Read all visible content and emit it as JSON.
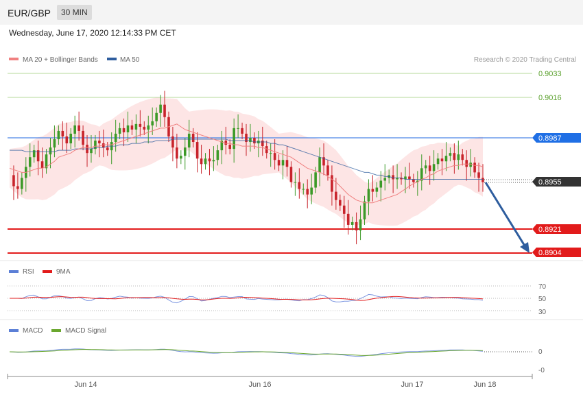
{
  "header": {
    "symbol": "EUR/GBP",
    "timeframe": "30 MIN",
    "datetime": "Wednesday, June 17, 2020 12:14:33 PM CET"
  },
  "legend": {
    "ma20": "MA 20 + Bollinger Bands",
    "ma50": "MA 50",
    "credit": "Research © 2020 Trading Central"
  },
  "levels": [
    {
      "value": "0.9033",
      "kind": "target-green"
    },
    {
      "value": "0.9016",
      "kind": "target-green"
    },
    {
      "value": "0.8987",
      "kind": "pivot-blue"
    },
    {
      "value": "0.8955",
      "kind": "last-price"
    },
    {
      "value": "0.8921",
      "kind": "support-red"
    },
    {
      "value": "0.8904",
      "kind": "support-red"
    }
  ],
  "rsi": {
    "label": "RSI",
    "ma_label": "9MA",
    "ticks": [
      "70",
      "50",
      "30"
    ]
  },
  "macd": {
    "label": "MACD",
    "signal_label": "MACD Signal",
    "ticks": [
      "0",
      "-0"
    ]
  },
  "xaxis": {
    "labels": [
      "Jun 14",
      "Jun 16",
      "Jun 17",
      "Jun 18"
    ]
  },
  "colors": {
    "ma20": "#f08080",
    "ma50": "#2e5d9e",
    "green": "#7cbf4a",
    "blue": "#4d88e8",
    "red": "#e21b1b",
    "bull": "#3c9a28",
    "bear": "#c8232b",
    "rsi": "#5b7fd6",
    "macd": "#5b7fd6",
    "signal": "#6aa72e"
  },
  "chart_data": {
    "type": "candlestick",
    "price_axis": {
      "ylim": [
        0.8895,
        0.904
      ]
    },
    "closes": [
      0.896,
      0.8952,
      0.895,
      0.8958,
      0.8966,
      0.8973,
      0.8978,
      0.897,
      0.8965,
      0.8975,
      0.898,
      0.8986,
      0.8992,
      0.8988,
      0.8983,
      0.899,
      0.8996,
      0.8992,
      0.8982,
      0.8976,
      0.8979,
      0.8985,
      0.8983,
      0.898,
      0.8978,
      0.8984,
      0.899,
      0.8994,
      0.8991,
      0.8996,
      0.8993,
      0.8997,
      0.8995,
      0.8993,
      0.8996,
      0.8999,
      0.9005,
      0.9011,
      0.9002,
      0.8988,
      0.898,
      0.8972,
      0.8974,
      0.898,
      0.899,
      0.8984,
      0.8972,
      0.8968,
      0.8972,
      0.897,
      0.8971,
      0.8978,
      0.8985,
      0.8982,
      0.8979,
      0.8994,
      0.8994,
      0.899,
      0.8984,
      0.8987,
      0.8983,
      0.8985,
      0.8981,
      0.8976,
      0.8976,
      0.8971,
      0.8967,
      0.8971,
      0.8966,
      0.8955,
      0.8955,
      0.895,
      0.895,
      0.8946,
      0.8951,
      0.8962,
      0.8973,
      0.8967,
      0.896,
      0.8948,
      0.8942,
      0.8938,
      0.8932,
      0.8924,
      0.8926,
      0.892,
      0.8928,
      0.8941,
      0.895,
      0.8948,
      0.8951,
      0.8956,
      0.8958,
      0.896,
      0.8957,
      0.8958,
      0.8957,
      0.8959,
      0.8957,
      0.8955,
      0.8956,
      0.8965,
      0.8967,
      0.8963,
      0.8968,
      0.8972,
      0.897,
      0.8974,
      0.8976,
      0.8971,
      0.8975,
      0.8971,
      0.8966,
      0.8969,
      0.8962,
      0.8958,
      0.8955
    ],
    "ma20": [
      0.8965,
      0.8964,
      0.8963,
      0.8962,
      0.8962,
      0.8963,
      0.8964,
      0.8965,
      0.8965,
      0.8966,
      0.8968,
      0.897,
      0.8973,
      0.8974,
      0.8975,
      0.8976,
      0.8978,
      0.8979,
      0.898,
      0.898,
      0.898,
      0.8981,
      0.8981,
      0.8982,
      0.8982,
      0.8982,
      0.8983,
      0.8984,
      0.8985,
      0.8986,
      0.8987,
      0.8988,
      0.8989,
      0.899,
      0.8991,
      0.8992,
      0.8993,
      0.8994,
      0.8994,
      0.8995,
      0.8996,
      0.8997,
      0.8995,
      0.8993,
      0.8992,
      0.8991,
      0.899,
      0.8989,
      0.8988,
      0.8987,
      0.8986,
      0.8985,
      0.8984,
      0.8983,
      0.8983,
      0.8982,
      0.8982,
      0.8981,
      0.8981,
      0.8981,
      0.8981,
      0.898,
      0.898,
      0.8979,
      0.8978,
      0.8977,
      0.8976,
      0.8975,
      0.8974,
      0.8973,
      0.8971,
      0.8969,
      0.8967,
      0.8965,
      0.8964,
      0.8963,
      0.8962,
      0.8961,
      0.8959,
      0.8957,
      0.8955,
      0.8952,
      0.8949,
      0.8946,
      0.8944,
      0.8942,
      0.8941,
      0.894,
      0.894,
      0.894,
      0.8941,
      0.8942,
      0.8943,
      0.8944,
      0.8945,
      0.8946,
      0.8948,
      0.895,
      0.8952,
      0.8954,
      0.8955,
      0.8957,
      0.8958,
      0.896,
      0.8961,
      0.8963,
      0.8964,
      0.8965,
      0.8966,
      0.8967,
      0.8967,
      0.8968,
      0.8968,
      0.8968,
      0.8967,
      0.8967,
      0.8966
    ],
    "ma50": [
      0.8978,
      0.8978,
      0.8978,
      0.8978,
      0.8977,
      0.8977,
      0.8977,
      0.8977,
      0.8977,
      0.8977,
      0.8977,
      0.8977,
      0.8978,
      0.8978,
      0.8978,
      0.8978,
      0.8979,
      0.8979,
      0.8979,
      0.8979,
      0.8979,
      0.898,
      0.898,
      0.898,
      0.8981,
      0.8981,
      0.8981,
      0.8982,
      0.8982,
      0.8982,
      0.8983,
      0.8983,
      0.8983,
      0.8984,
      0.8984,
      0.8984,
      0.8985,
      0.8985,
      0.8985,
      0.8985,
      0.8986,
      0.8986,
      0.8986,
      0.8986,
      0.8986,
      0.8986,
      0.8986,
      0.8986,
      0.8986,
      0.8986,
      0.8986,
      0.8986,
      0.8986,
      0.8986,
      0.8985,
      0.8985,
      0.8985,
      0.8985,
      0.8985,
      0.8985,
      0.8984,
      0.8984,
      0.8984,
      0.8984,
      0.8983,
      0.8983,
      0.8982,
      0.8982,
      0.8981,
      0.898,
      0.8979,
      0.8978,
      0.8977,
      0.8976,
      0.8975,
      0.8974,
      0.8973,
      0.8972,
      0.8971,
      0.897,
      0.8969,
      0.8968,
      0.8967,
      0.8966,
      0.8965,
      0.8964,
      0.8963,
      0.8962,
      0.8962,
      0.8961,
      0.896,
      0.896,
      0.8959,
      0.8959,
      0.8958,
      0.8958,
      0.8958,
      0.8957,
      0.8957,
      0.8957,
      0.8957,
      0.8957,
      0.8957,
      0.8957,
      0.8957,
      0.8957,
      0.8957,
      0.8957,
      0.8957,
      0.8957,
      0.8957,
      0.8957,
      0.8957,
      0.8957,
      0.8957,
      0.8957,
      0.8957
    ]
  }
}
